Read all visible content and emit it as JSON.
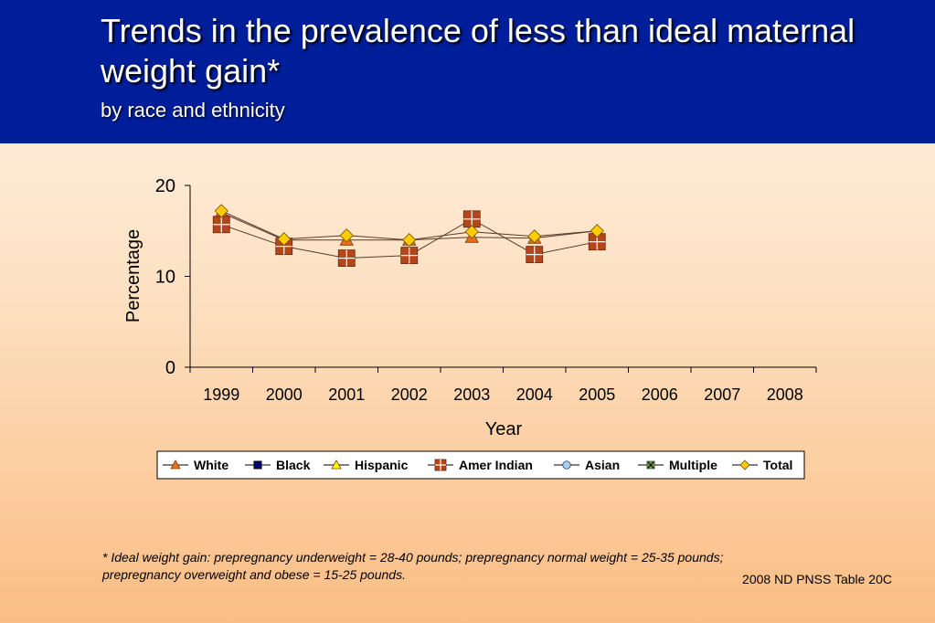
{
  "title": "Trends in the prevalence of less than ideal maternal weight gain*",
  "subtitle": "by race and ethnicity",
  "footnote": "*  Ideal weight gain: prepregnancy underweight = 28-40 pounds; prepregnancy normal weight = 25-35 pounds;\n   prepregnancy overweight and obese = 15-25 pounds.",
  "source": "2008 ND PNSS Table 20C",
  "chart_data": {
    "type": "line",
    "xlabel": "Year",
    "ylabel": "Percentage",
    "ylim": [
      0,
      20
    ],
    "yticks": [
      0,
      10,
      20
    ],
    "categories": [
      "1999",
      "2000",
      "2001",
      "2002",
      "2003",
      "2004",
      "2005",
      "2006",
      "2007",
      "2008"
    ],
    "grid": false,
    "legend": "bottom",
    "series": [
      {
        "name": "White",
        "marker": "triangle",
        "color": "#e8701a",
        "values": [
          17.0,
          14.0,
          14.0,
          14.0,
          14.3,
          14.2,
          15.0,
          null,
          null,
          null
        ]
      },
      {
        "name": "Black",
        "marker": "square",
        "color": "#000080",
        "values": [
          null,
          null,
          null,
          null,
          null,
          null,
          null,
          null,
          null,
          null
        ]
      },
      {
        "name": "Hispanic",
        "marker": "triangle",
        "color": "#ffff00",
        "values": [
          null,
          null,
          null,
          null,
          null,
          null,
          null,
          null,
          null,
          null
        ]
      },
      {
        "name": "Amer Indian",
        "marker": "plus-square",
        "color": "#b5461a",
        "values": [
          15.7,
          13.3,
          12.0,
          12.3,
          16.3,
          12.4,
          13.8,
          null,
          null,
          null
        ]
      },
      {
        "name": "Asian",
        "marker": "circle",
        "color": "#a8d0f0",
        "values": [
          null,
          null,
          null,
          null,
          null,
          null,
          null,
          null,
          null,
          null
        ]
      },
      {
        "name": "Multiple",
        "marker": "x-square",
        "color": "#7a9a3a",
        "values": [
          null,
          null,
          null,
          null,
          null,
          null,
          null,
          null,
          null,
          null
        ]
      },
      {
        "name": "Total",
        "marker": "diamond",
        "color": "#ffcc00",
        "values": [
          17.2,
          14.1,
          14.5,
          14.0,
          14.9,
          14.4,
          15.0,
          null,
          null,
          null
        ]
      }
    ]
  }
}
